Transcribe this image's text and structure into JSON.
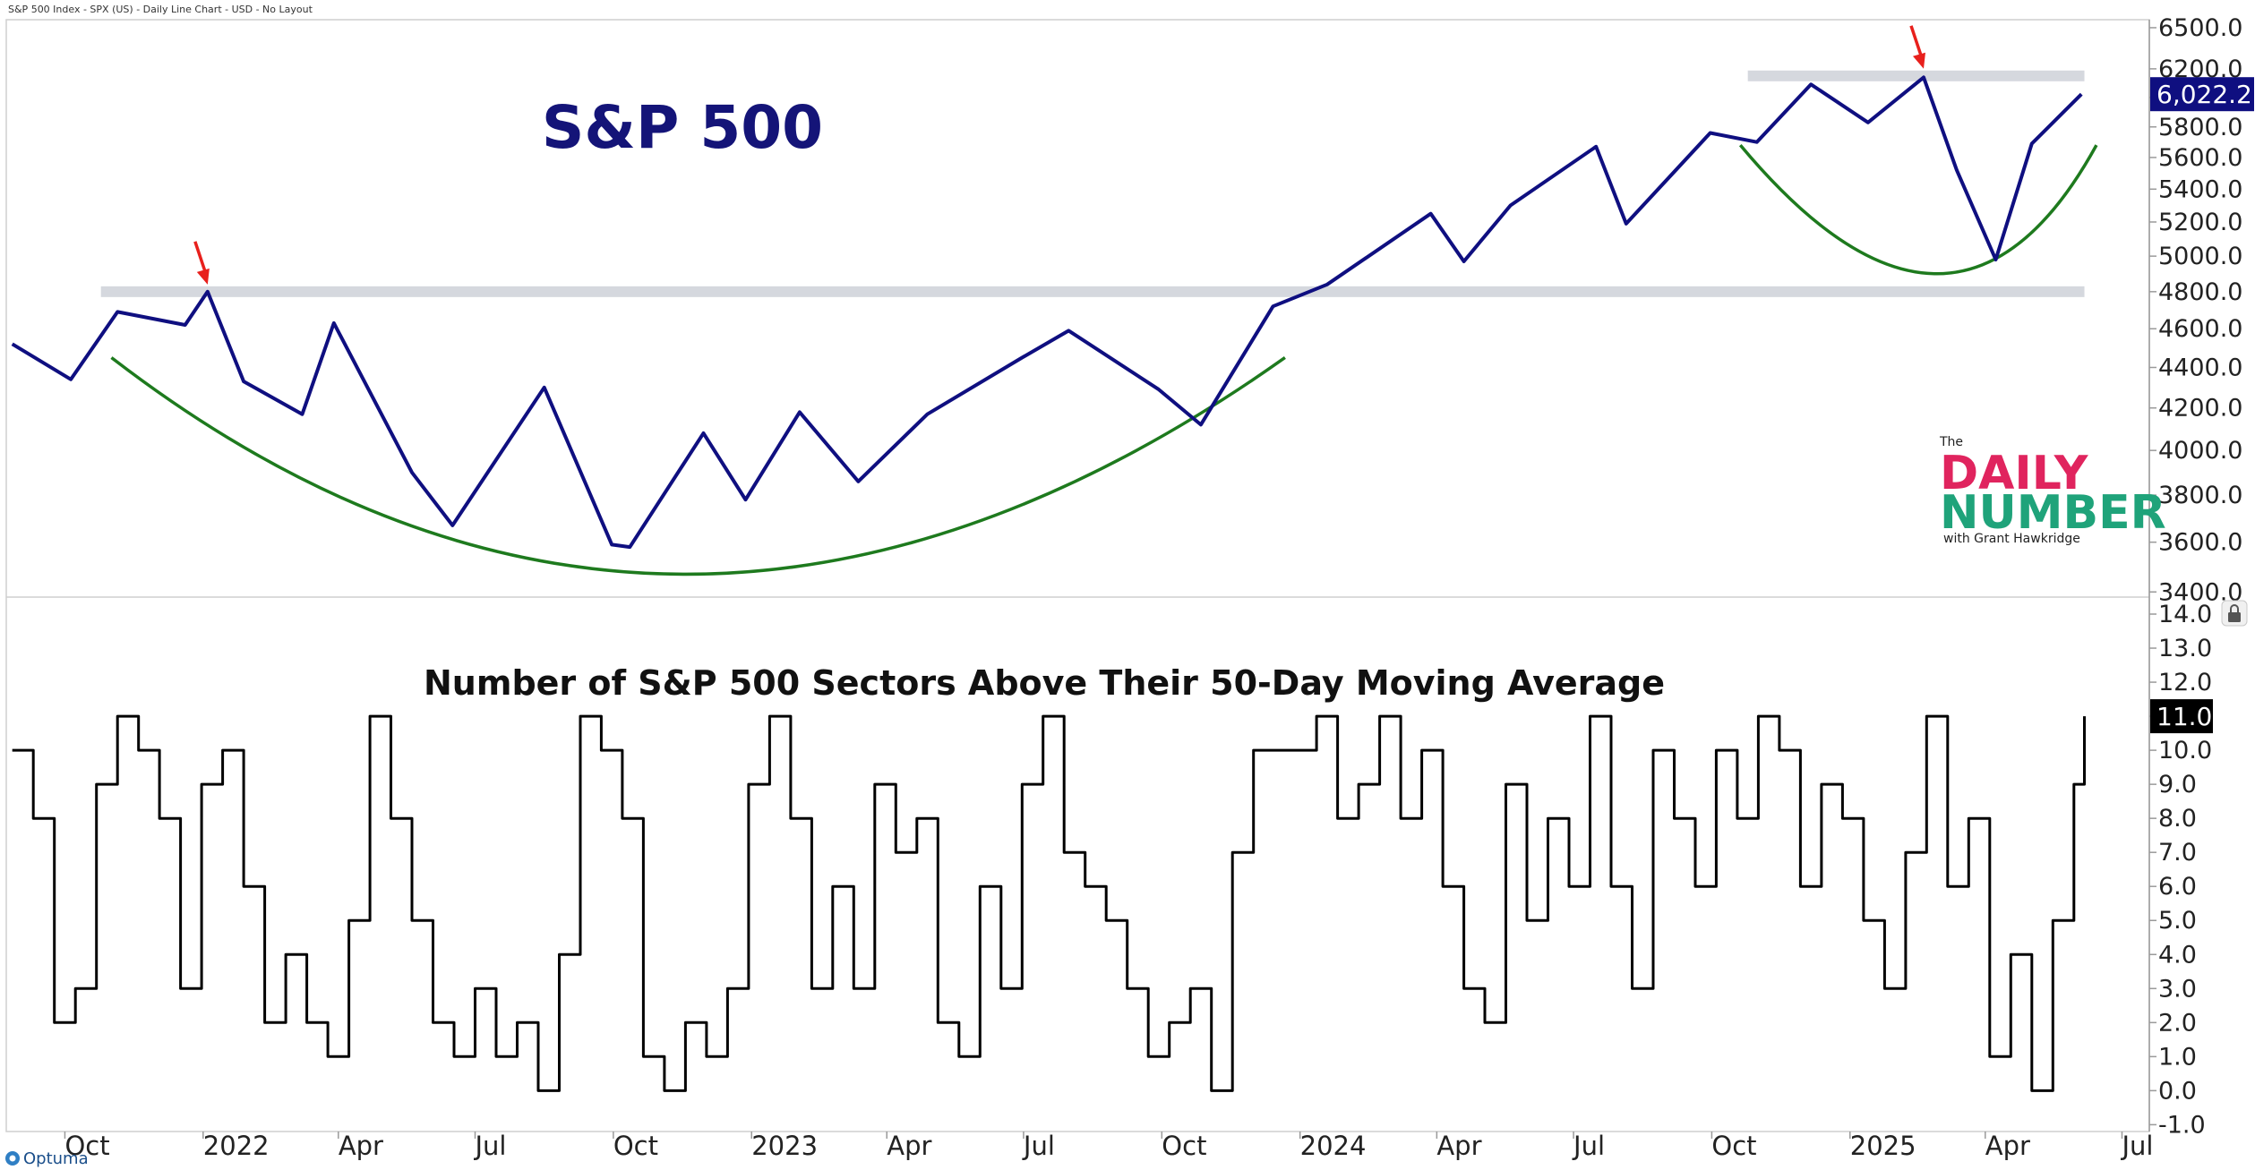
{
  "header_text": "S&P 500 Index - SPX (US) - Daily Line Chart - USD - No Layout",
  "footer_brand": "Optuma",
  "x_tick_labels": [
    "Oct",
    "2022",
    "Apr",
    "Jul",
    "Oct",
    "2023",
    "Apr",
    "Jul",
    "Oct",
    "2024",
    "Apr",
    "Jul",
    "Oct",
    "2025",
    "Apr",
    "Jul"
  ],
  "logo": {
    "the": "The",
    "line1": "DAILY",
    "line2": "NUMBER",
    "tagline": "with Grant Hawkridge"
  },
  "colors": {
    "price_line": "#0f0f80",
    "breadth_line": "#000000",
    "arc": "#1e7a1e",
    "arrow": "#e8201c",
    "resistance_band": "#d5d8de",
    "last_price_bg": "#0f0f80",
    "last_breadth_bg": "#000000"
  },
  "chart_data": [
    {
      "type": "line",
      "title": "S&P 500",
      "series": [
        {
          "name": "S&P 500",
          "x": [
            "2021-08-27",
            "2021-10-05",
            "2021-11-05",
            "2021-12-20",
            "2022-01-04",
            "2022-01-28",
            "2022-03-08",
            "2022-03-29",
            "2022-05-20",
            "2022-06-16",
            "2022-08-16",
            "2022-09-30",
            "2022-10-12",
            "2022-11-30",
            "2022-12-28",
            "2023-02-02",
            "2023-03-13",
            "2023-04-28",
            "2023-06-30",
            "2023-07-31",
            "2023-09-29",
            "2023-10-27",
            "2023-12-14",
            "2024-01-19",
            "2024-03-28",
            "2024-04-19",
            "2024-05-20",
            "2024-07-16",
            "2024-08-05",
            "2024-09-30",
            "2024-10-31",
            "2024-12-06",
            "2025-01-13",
            "2025-02-19",
            "2025-03-13",
            "2025-04-08",
            "2025-05-02",
            "2025-06-04"
          ],
          "values": [
            4520,
            4340,
            4690,
            4620,
            4800,
            4330,
            4170,
            4630,
            3900,
            3670,
            4300,
            3590,
            3580,
            4080,
            3780,
            4180,
            3860,
            4170,
            4450,
            4590,
            4290,
            4120,
            4720,
            4840,
            5250,
            4970,
            5300,
            5670,
            5190,
            5760,
            5700,
            6090,
            5830,
            6140,
            5520,
            4980,
            5690,
            6022.2
          ]
        }
      ],
      "last_value_label": "6,022.2",
      "y_tick_labels": [
        "6500.0",
        "6200.0",
        "6000.0",
        "5800.0",
        "5600.0",
        "5400.0",
        "5200.0",
        "5000.0",
        "4800.0",
        "4600.0",
        "4400.0",
        "4200.0",
        "4000.0",
        "3800.0",
        "3600.0",
        "3400.0"
      ],
      "y_scale": "log",
      "ylim": [
        3380,
        6560
      ],
      "xlim": [
        "2021-08-23",
        "2025-07-18"
      ],
      "resistance_levels": [
        4800,
        6150
      ],
      "annotations": [
        "red arrow at January 2022 peak",
        "red arrow at February 2025 peak",
        "green arc under 2022-2023 base",
        "green arc under 2025 base"
      ]
    },
    {
      "type": "line",
      "title": "Number of S&P 500 Sectors Above Their 50-Day Moving Average",
      "series": [
        {
          "name": "Sectors above 50-day MA",
          "x": [
            "2021-08-27",
            "2021-09-10",
            "2021-09-24",
            "2021-10-08",
            "2021-10-22",
            "2021-11-05",
            "2021-11-19",
            "2021-12-03",
            "2021-12-17",
            "2021-12-31",
            "2022-01-14",
            "2022-01-28",
            "2022-02-11",
            "2022-02-25",
            "2022-03-11",
            "2022-03-25",
            "2022-04-08",
            "2022-04-22",
            "2022-05-06",
            "2022-05-20",
            "2022-06-03",
            "2022-06-17",
            "2022-07-01",
            "2022-07-15",
            "2022-07-29",
            "2022-08-12",
            "2022-08-26",
            "2022-09-09",
            "2022-09-23",
            "2022-10-07",
            "2022-10-21",
            "2022-11-04",
            "2022-11-18",
            "2022-12-02",
            "2022-12-16",
            "2022-12-30",
            "2023-01-13",
            "2023-01-27",
            "2023-02-10",
            "2023-02-24",
            "2023-03-10",
            "2023-03-24",
            "2023-04-07",
            "2023-04-21",
            "2023-05-05",
            "2023-05-19",
            "2023-06-02",
            "2023-06-16",
            "2023-06-30",
            "2023-07-14",
            "2023-07-28",
            "2023-08-11",
            "2023-08-25",
            "2023-09-08",
            "2023-09-22",
            "2023-10-06",
            "2023-10-20",
            "2023-11-03",
            "2023-11-17",
            "2023-12-01",
            "2023-12-15",
            "2023-12-29",
            "2024-01-12",
            "2024-01-26",
            "2024-02-09",
            "2024-02-23",
            "2024-03-08",
            "2024-03-22",
            "2024-04-05",
            "2024-04-19",
            "2024-05-03",
            "2024-05-17",
            "2024-05-31",
            "2024-06-14",
            "2024-06-28",
            "2024-07-12",
            "2024-07-26",
            "2024-08-09",
            "2024-08-23",
            "2024-09-06",
            "2024-09-20",
            "2024-10-04",
            "2024-10-18",
            "2024-11-01",
            "2024-11-15",
            "2024-11-29",
            "2024-12-13",
            "2024-12-27",
            "2025-01-10",
            "2025-01-24",
            "2025-02-07",
            "2025-02-21",
            "2025-03-07",
            "2025-03-21",
            "2025-04-04",
            "2025-04-18",
            "2025-05-02",
            "2025-05-16",
            "2025-05-30",
            "2025-06-06"
          ],
          "values": [
            10,
            8,
            2,
            3,
            9,
            11,
            10,
            8,
            3,
            9,
            10,
            6,
            2,
            4,
            2,
            1,
            5,
            11,
            8,
            5,
            2,
            1,
            3,
            1,
            2,
            0,
            4,
            11,
            10,
            8,
            1,
            0,
            2,
            1,
            3,
            9,
            11,
            8,
            3,
            6,
            3,
            9,
            7,
            8,
            2,
            1,
            6,
            3,
            9,
            11,
            7,
            6,
            5,
            3,
            1,
            2,
            3,
            0,
            7,
            10,
            10,
            10,
            11,
            8,
            9,
            11,
            8,
            10,
            6,
            3,
            2,
            9,
            5,
            8,
            6,
            11,
            6,
            3,
            10,
            8,
            6,
            10,
            8,
            11,
            10,
            6,
            9,
            8,
            5,
            3,
            7,
            11,
            6,
            8,
            1,
            4,
            0,
            5,
            9,
            11
          ]
        }
      ],
      "last_value_label": "11.0",
      "y_tick_labels": [
        "14.0",
        "13.0",
        "12.0",
        "11.0",
        "10.0",
        "9.0",
        "8.0",
        "7.0",
        "6.0",
        "5.0",
        "4.0",
        "3.0",
        "2.0",
        "1.0",
        "0.0",
        "-1.0"
      ],
      "ylim": [
        -1.2,
        14.5
      ],
      "xlim": [
        "2021-08-23",
        "2025-07-18"
      ]
    }
  ]
}
